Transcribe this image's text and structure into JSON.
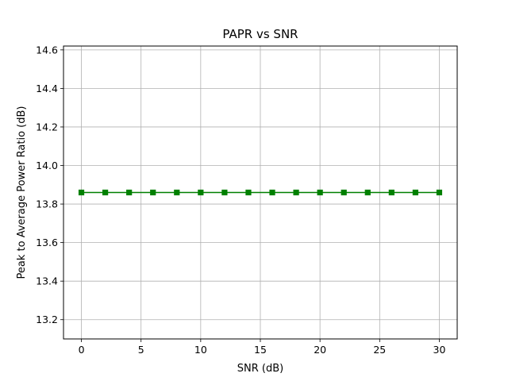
{
  "chart_data": {
    "type": "line",
    "title": "PAPR vs SNR",
    "xlabel": "SNR (dB)",
    "ylabel": "Peak to Average Power Ratio (dB)",
    "xlim": [
      -1.5,
      31.5
    ],
    "ylim": [
      13.1,
      14.62
    ],
    "xticks": [
      0,
      5,
      10,
      15,
      20,
      25,
      30
    ],
    "yticks": [
      13.2,
      13.4,
      13.6,
      13.8,
      14.0,
      14.2,
      14.4,
      14.6
    ],
    "grid": true,
    "series": [
      {
        "color": "#008000",
        "marker": "square",
        "x": [
          0,
          2,
          4,
          6,
          8,
          10,
          12,
          14,
          16,
          18,
          20,
          22,
          24,
          26,
          28,
          30
        ],
        "y": [
          13.86,
          13.86,
          13.86,
          13.86,
          13.86,
          13.86,
          13.86,
          13.86,
          13.86,
          13.86,
          13.86,
          13.86,
          13.86,
          13.86,
          13.86,
          13.86
        ]
      }
    ]
  }
}
